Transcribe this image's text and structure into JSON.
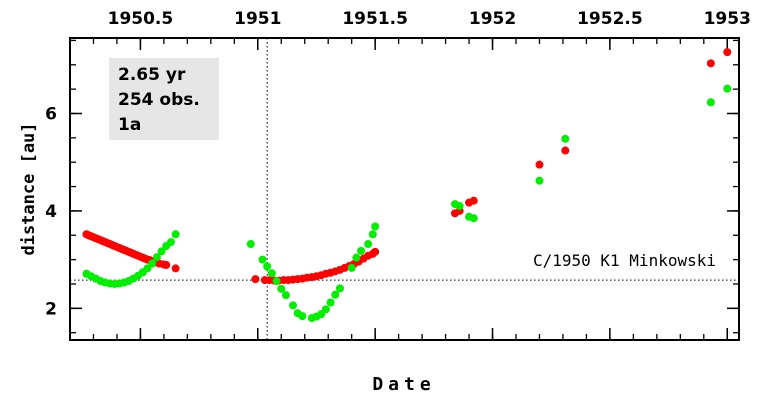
{
  "chart_data": {
    "type": "scatter",
    "title": "",
    "xlabel": "Date",
    "ylabel": "distance [au]",
    "xlim": [
      1950.2,
      1953.05
    ],
    "ylim": [
      1.35,
      7.55
    ],
    "x_ticks": [
      "1950.5",
      "1951",
      "1951.5",
      "1952",
      "1952.5",
      "1953"
    ],
    "x_tick_values": [
      1950.5,
      1951,
      1951.5,
      1952,
      1952.5,
      1953
    ],
    "y_ticks": [
      "2",
      "4",
      "6"
    ],
    "y_tick_values": [
      2,
      4,
      6
    ],
    "grid": false,
    "info_box": {
      "lines": [
        "2.65 yr",
        "254 obs.",
        "1a"
      ],
      "background": "#e6e6e6"
    },
    "object_label": "C/1950 K1 Minkowski",
    "reference_lines": {
      "perihelion_date": 1951.04,
      "perihelion_distance": 2.58
    },
    "series": [
      {
        "color": "#ff0000",
        "points": [
          [
            1950.27,
            3.52
          ],
          [
            1950.28,
            3.5
          ],
          [
            1950.29,
            3.48
          ],
          [
            1950.3,
            3.46
          ],
          [
            1950.31,
            3.44
          ],
          [
            1950.32,
            3.42
          ],
          [
            1950.33,
            3.4
          ],
          [
            1950.34,
            3.38
          ],
          [
            1950.35,
            3.36
          ],
          [
            1950.36,
            3.34
          ],
          [
            1950.37,
            3.32
          ],
          [
            1950.38,
            3.3
          ],
          [
            1950.39,
            3.28
          ],
          [
            1950.4,
            3.26
          ],
          [
            1950.41,
            3.24
          ],
          [
            1950.42,
            3.22
          ],
          [
            1950.43,
            3.2
          ],
          [
            1950.44,
            3.18
          ],
          [
            1950.45,
            3.16
          ],
          [
            1950.46,
            3.14
          ],
          [
            1950.47,
            3.12
          ],
          [
            1950.48,
            3.1
          ],
          [
            1950.49,
            3.08
          ],
          [
            1950.5,
            3.06
          ],
          [
            1950.51,
            3.04
          ],
          [
            1950.52,
            3.02
          ],
          [
            1950.53,
            3.0
          ],
          [
            1950.54,
            2.99
          ],
          [
            1950.55,
            2.97
          ],
          [
            1950.56,
            2.95
          ],
          [
            1950.57,
            2.94
          ],
          [
            1950.58,
            2.92
          ],
          [
            1950.6,
            2.9
          ],
          [
            1950.61,
            2.89
          ],
          [
            1950.65,
            2.82
          ],
          [
            1950.99,
            2.6
          ],
          [
            1951.03,
            2.58
          ],
          [
            1951.05,
            2.58
          ],
          [
            1951.07,
            2.57
          ],
          [
            1951.09,
            2.57
          ],
          [
            1951.11,
            2.58
          ],
          [
            1951.13,
            2.58
          ],
          [
            1951.15,
            2.59
          ],
          [
            1951.17,
            2.6
          ],
          [
            1951.19,
            2.61
          ],
          [
            1951.21,
            2.63
          ],
          [
            1951.23,
            2.64
          ],
          [
            1951.25,
            2.66
          ],
          [
            1951.27,
            2.68
          ],
          [
            1951.29,
            2.71
          ],
          [
            1951.31,
            2.73
          ],
          [
            1951.33,
            2.76
          ],
          [
            1951.35,
            2.79
          ],
          [
            1951.37,
            2.83
          ],
          [
            1951.39,
            2.87
          ],
          [
            1951.41,
            2.91
          ],
          [
            1951.43,
            2.96
          ],
          [
            1951.45,
            3.02
          ],
          [
            1951.47,
            3.08
          ],
          [
            1951.49,
            3.12
          ],
          [
            1951.5,
            3.16
          ],
          [
            1951.84,
            3.95
          ],
          [
            1951.86,
            4.0
          ],
          [
            1951.9,
            4.17
          ],
          [
            1951.92,
            4.21
          ],
          [
            1952.2,
            4.95
          ],
          [
            1952.31,
            5.24
          ],
          [
            1952.93,
            7.03
          ],
          [
            1953.0,
            7.26
          ]
        ]
      },
      {
        "color": "#00ee00",
        "points": [
          [
            1950.27,
            2.71
          ],
          [
            1950.29,
            2.66
          ],
          [
            1950.31,
            2.61
          ],
          [
            1950.33,
            2.56
          ],
          [
            1950.35,
            2.53
          ],
          [
            1950.37,
            2.51
          ],
          [
            1950.39,
            2.5
          ],
          [
            1950.41,
            2.51
          ],
          [
            1950.43,
            2.53
          ],
          [
            1950.45,
            2.56
          ],
          [
            1950.47,
            2.61
          ],
          [
            1950.49,
            2.67
          ],
          [
            1950.51,
            2.74
          ],
          [
            1950.53,
            2.82
          ],
          [
            1950.55,
            2.92
          ],
          [
            1950.57,
            3.05
          ],
          [
            1950.59,
            3.17
          ],
          [
            1950.61,
            3.28
          ],
          [
            1950.63,
            3.36
          ],
          [
            1950.65,
            3.52
          ],
          [
            1950.97,
            3.32
          ],
          [
            1951.02,
            3.0
          ],
          [
            1951.04,
            2.86
          ],
          [
            1951.06,
            2.72
          ],
          [
            1951.08,
            2.56
          ],
          [
            1951.1,
            2.4
          ],
          [
            1951.12,
            2.27
          ],
          [
            1951.15,
            2.06
          ],
          [
            1951.17,
            1.9
          ],
          [
            1951.19,
            1.84
          ],
          [
            1951.23,
            1.8
          ],
          [
            1951.25,
            1.83
          ],
          [
            1951.27,
            1.88
          ],
          [
            1951.29,
            1.98
          ],
          [
            1951.31,
            2.12
          ],
          [
            1951.33,
            2.28
          ],
          [
            1951.35,
            2.41
          ],
          [
            1951.4,
            2.83
          ],
          [
            1951.42,
            3.04
          ],
          [
            1951.44,
            3.18
          ],
          [
            1951.47,
            3.32
          ],
          [
            1951.49,
            3.52
          ],
          [
            1951.5,
            3.68
          ],
          [
            1951.84,
            4.14
          ],
          [
            1951.86,
            4.1
          ],
          [
            1951.9,
            3.88
          ],
          [
            1951.92,
            3.85
          ],
          [
            1952.2,
            4.62
          ],
          [
            1952.31,
            5.48
          ],
          [
            1952.93,
            6.23
          ],
          [
            1953.0,
            6.51
          ]
        ]
      }
    ]
  }
}
